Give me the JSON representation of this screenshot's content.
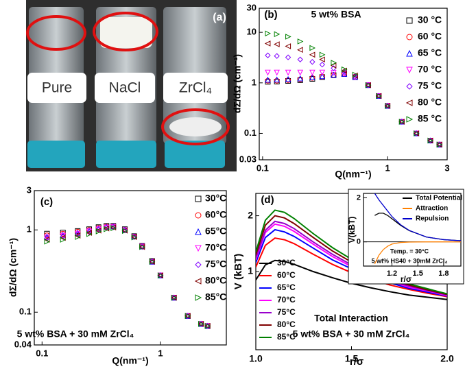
{
  "photo": {
    "label": "(a)",
    "vials": [
      "Pure",
      "NaCl",
      "ZrCl₄"
    ]
  },
  "chart_data": [
    {
      "type": "scatter",
      "label": "(b)",
      "annotations": [
        "5 wt% BSA"
      ],
      "x_label": "Q(nm⁻¹)",
      "y_label": "dΣ/dΩ (cm⁻¹)",
      "xscale": "log",
      "yscale": "log",
      "xlim": [
        0.094,
        3
      ],
      "ylim": [
        0.03,
        30
      ],
      "xticks": [
        0.1,
        1,
        3
      ],
      "yticks": [
        0.03,
        0.1,
        1,
        10,
        30
      ],
      "x": [
        0.11,
        0.13,
        0.16,
        0.2,
        0.25,
        0.3,
        0.37,
        0.45,
        0.55,
        0.7,
        0.85,
        1.0,
        1.3,
        1.7,
        2.2,
        2.6
      ],
      "series": [
        {
          "name": "30 °C",
          "color": "#000000",
          "marker": "square",
          "values": [
            1.05,
            1.06,
            1.09,
            1.13,
            1.2,
            1.3,
            1.42,
            1.5,
            1.3,
            0.9,
            0.55,
            0.35,
            0.17,
            0.1,
            0.072,
            0.06
          ]
        },
        {
          "name": "60 °C",
          "color": "#ff0000",
          "marker": "circle",
          "values": [
            1.1,
            1.1,
            1.13,
            1.17,
            1.25,
            1.32,
            1.43,
            1.5,
            1.3,
            0.9,
            0.55,
            0.35,
            0.17,
            0.1,
            0.072,
            0.06
          ]
        },
        {
          "name": "65 °C",
          "color": "#0000ff",
          "marker": "triangle-up",
          "values": [
            1.15,
            1.16,
            1.18,
            1.22,
            1.28,
            1.35,
            1.44,
            1.5,
            1.3,
            0.9,
            0.55,
            0.35,
            0.17,
            0.1,
            0.072,
            0.06
          ]
        },
        {
          "name": "70 °C",
          "color": "#ff00ff",
          "marker": "triangle-down",
          "values": [
            1.6,
            1.6,
            1.6,
            1.6,
            1.6,
            1.6,
            1.58,
            1.52,
            1.3,
            0.9,
            0.55,
            0.35,
            0.17,
            0.1,
            0.072,
            0.06
          ]
        },
        {
          "name": "75 °C",
          "color": "#8000ff",
          "marker": "diamond",
          "values": [
            3.5,
            3.4,
            3.2,
            2.9,
            2.6,
            2.3,
            1.95,
            1.65,
            1.35,
            0.9,
            0.55,
            0.35,
            0.17,
            0.1,
            0.072,
            0.06
          ]
        },
        {
          "name": "80 °C",
          "color": "#800000",
          "marker": "triangle-left",
          "values": [
            6.0,
            5.8,
            5.3,
            4.5,
            3.6,
            2.9,
            2.2,
            1.75,
            1.4,
            0.9,
            0.55,
            0.35,
            0.17,
            0.1,
            0.072,
            0.06
          ]
        },
        {
          "name": "85 °C",
          "color": "#008000",
          "marker": "triangle-right",
          "values": [
            9.5,
            9.2,
            8.2,
            6.6,
            4.9,
            3.6,
            2.5,
            1.85,
            1.45,
            0.9,
            0.55,
            0.35,
            0.17,
            0.1,
            0.072,
            0.06
          ]
        }
      ]
    },
    {
      "type": "scatter",
      "label": "(c)",
      "annotations": [
        "5 wt% BSA + 30 mM ZrCl₄"
      ],
      "x_label": "Q(nm⁻¹)",
      "y_label": "dΣ/dΩ (cm⁻¹)",
      "xscale": "log",
      "yscale": "log",
      "xlim": [
        0.086,
        3.6
      ],
      "ylim": [
        0.04,
        3
      ],
      "xticks": [
        0.1,
        1
      ],
      "yticks": [
        0.04,
        0.1,
        1,
        3
      ],
      "x": [
        0.11,
        0.15,
        0.2,
        0.25,
        0.3,
        0.35,
        0.4,
        0.5,
        0.6,
        0.7,
        0.85,
        1.0,
        1.3,
        1.7,
        2.2,
        2.5
      ],
      "series": [
        {
          "name": "30°C",
          "color": "#000000",
          "marker": "square",
          "values": [
            0.9,
            0.93,
            0.97,
            1.02,
            1.08,
            1.12,
            1.12,
            1.02,
            0.84,
            0.64,
            0.42,
            0.28,
            0.15,
            0.09,
            0.072,
            0.068
          ]
        },
        {
          "name": "60°C",
          "color": "#ff0000",
          "marker": "circle",
          "values": [
            0.86,
            0.9,
            0.95,
            1.0,
            1.06,
            1.1,
            1.1,
            1.0,
            0.83,
            0.63,
            0.41,
            0.28,
            0.15,
            0.09,
            0.072,
            0.068
          ]
        },
        {
          "name": "65°C",
          "color": "#0000ff",
          "marker": "triangle-up",
          "values": [
            0.83,
            0.87,
            0.92,
            0.98,
            1.04,
            1.09,
            1.1,
            1.0,
            0.83,
            0.63,
            0.41,
            0.28,
            0.15,
            0.09,
            0.072,
            0.068
          ]
        },
        {
          "name": "70°C",
          "color": "#ff00ff",
          "marker": "triangle-down",
          "values": [
            0.81,
            0.85,
            0.9,
            0.96,
            1.02,
            1.07,
            1.09,
            0.99,
            0.82,
            0.63,
            0.41,
            0.28,
            0.15,
            0.09,
            0.072,
            0.068
          ]
        },
        {
          "name": "75°C",
          "color": "#8000ff",
          "marker": "diamond",
          "values": [
            0.79,
            0.83,
            0.88,
            0.94,
            1.0,
            1.06,
            1.08,
            0.99,
            0.82,
            0.62,
            0.41,
            0.28,
            0.15,
            0.09,
            0.072,
            0.068
          ]
        },
        {
          "name": "80°C",
          "color": "#800000",
          "marker": "triangle-left",
          "values": [
            0.76,
            0.8,
            0.85,
            0.92,
            0.98,
            1.04,
            1.07,
            0.98,
            0.82,
            0.62,
            0.41,
            0.28,
            0.15,
            0.09,
            0.072,
            0.068
          ]
        },
        {
          "name": "85°C",
          "color": "#008000",
          "marker": "triangle-right",
          "values": [
            0.72,
            0.76,
            0.82,
            0.89,
            0.96,
            1.02,
            1.05,
            0.97,
            0.81,
            0.62,
            0.41,
            0.28,
            0.15,
            0.09,
            0.072,
            0.068
          ]
        }
      ]
    },
    {
      "type": "line",
      "label": "(d)",
      "annotations": [
        "Total Interaction",
        "5 wt% BSA + 30 mM ZrCl₄"
      ],
      "x_label": "r/σ",
      "y_label": "V (kBT)",
      "xlim": [
        1,
        2
      ],
      "ylim": [
        -0.4,
        2.4
      ],
      "xticks": [
        {
          "value": 1,
          "label": "1.0"
        },
        1.5,
        {
          "value": 2,
          "label": "2.0"
        }
      ],
      "yticks": [
        1,
        2
      ],
      "x": [
        1.0,
        1.05,
        1.1,
        1.15,
        1.2,
        1.3,
        1.4,
        1.5,
        1.6,
        1.7,
        1.8,
        1.9,
        2.0
      ],
      "series": [
        {
          "name": "30°C",
          "color": "#000000",
          "values": [
            0.85,
            1.12,
            1.2,
            1.18,
            1.13,
            1.0,
            0.89,
            0.79,
            0.71,
            0.64,
            0.58,
            0.54,
            0.5
          ]
        },
        {
          "name": "60°C",
          "color": "#ff0000",
          "values": [
            1.08,
            1.47,
            1.6,
            1.57,
            1.5,
            1.31,
            1.13,
            0.98,
            0.87,
            0.76,
            0.68,
            0.61,
            0.55
          ]
        },
        {
          "name": "65°C",
          "color": "#0000ff",
          "values": [
            1.16,
            1.61,
            1.75,
            1.71,
            1.63,
            1.42,
            1.21,
            1.05,
            0.92,
            0.8,
            0.7,
            0.63,
            0.56
          ]
        },
        {
          "name": "70°C",
          "color": "#ff00ff",
          "values": [
            1.21,
            1.7,
            1.85,
            1.81,
            1.72,
            1.49,
            1.27,
            1.09,
            0.95,
            0.83,
            0.72,
            0.65,
            0.57
          ]
        },
        {
          "name": "75°C",
          "color": "#9900cc",
          "values": [
            1.24,
            1.74,
            1.9,
            1.86,
            1.77,
            1.53,
            1.31,
            1.12,
            0.98,
            0.84,
            0.74,
            0.66,
            0.58
          ]
        },
        {
          "name": "80°C",
          "color": "#800000",
          "values": [
            1.3,
            1.83,
            2.0,
            1.96,
            1.86,
            1.61,
            1.37,
            1.17,
            1.01,
            0.87,
            0.76,
            0.67,
            0.59
          ]
        },
        {
          "name": "85°C",
          "color": "#008000",
          "values": [
            1.35,
            1.92,
            2.1,
            2.06,
            1.95,
            1.68,
            1.43,
            1.22,
            1.05,
            0.9,
            0.78,
            0.69,
            0.6
          ]
        }
      ]
    },
    {
      "type": "line",
      "annotations": [
        "Temp. = 30°C",
        "5 wt% HS40 + 30mM ZrCl₄"
      ],
      "x_label": "r/σ",
      "y_label": "V(kBT)",
      "xlim": [
        0.87,
        2.0
      ],
      "ylim": [
        -1.1,
        2.2
      ],
      "xticks": [
        1.2,
        1.5,
        1.8
      ],
      "yticks": [
        0,
        2
      ],
      "zero_line": true,
      "x": [
        1.0,
        1.05,
        1.1,
        1.15,
        1.2,
        1.3,
        1.4,
        1.6,
        1.8,
        2.0
      ],
      "series": [
        {
          "name": "Total Potential",
          "color": "#000000",
          "values": [
            1.2,
            1.3,
            1.3,
            1.2,
            1.05,
            0.75,
            0.51,
            0.22,
            0.1,
            0.05
          ]
        },
        {
          "name": "Attraction",
          "color": "#ff8000",
          "values": [
            -1.0,
            -0.6,
            -0.35,
            -0.2,
            -0.1,
            -0.03,
            -0.01,
            0,
            0,
            0
          ]
        },
        {
          "name": "Repulsion",
          "color": "#0000cc",
          "values": [
            2.2,
            1.9,
            1.65,
            1.4,
            1.15,
            0.78,
            0.52,
            0.22,
            0.1,
            0.05
          ]
        }
      ]
    }
  ]
}
